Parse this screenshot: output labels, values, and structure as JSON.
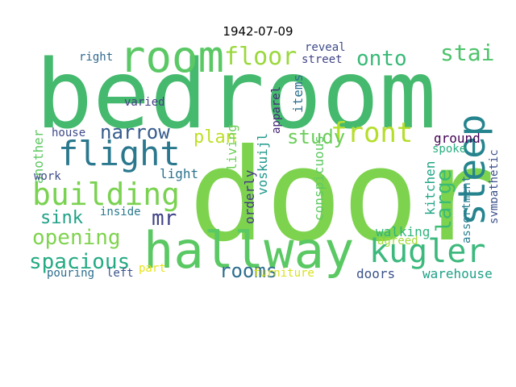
{
  "figure": {
    "title": "1942-07-09"
  },
  "words": [
    {
      "text": "bedroom",
      "color": "#45b96e"
    },
    {
      "text": "door",
      "color": "#7ed34e"
    },
    {
      "text": "hallway",
      "color": "#5ac863"
    },
    {
      "text": "room",
      "color": "#5ac864"
    },
    {
      "text": "building",
      "color": "#7ad251"
    },
    {
      "text": "flight",
      "color": "#2a788e"
    },
    {
      "text": "steep",
      "color": "#25848e"
    },
    {
      "text": "kugler",
      "color": "#3db97d"
    },
    {
      "text": "floor",
      "color": "#9ad83c"
    },
    {
      "text": "front",
      "color": "#b5de2b"
    },
    {
      "text": "stairs",
      "color": "#4ec36b"
    },
    {
      "text": "onto",
      "color": "#38b977"
    },
    {
      "text": "opening",
      "color": "#7fd34e"
    },
    {
      "text": "spacious",
      "color": "#24aa83"
    },
    {
      "text": "rooms",
      "color": "#2e6e8e"
    },
    {
      "text": "narrow",
      "color": "#365c8d"
    },
    {
      "text": "sink",
      "color": "#1fa187"
    },
    {
      "text": "study",
      "color": "#6ccd5a"
    },
    {
      "text": "plan",
      "color": "#bddf26"
    },
    {
      "text": "large",
      "color": "#3bbb75"
    },
    {
      "text": "mr",
      "color": "#414487"
    },
    {
      "text": "street",
      "color": "#414487"
    },
    {
      "text": "reveal",
      "color": "#3e4c8a"
    },
    {
      "text": "living",
      "color": "#6ece58"
    },
    {
      "text": "items",
      "color": "#2d708e"
    },
    {
      "text": "apparel",
      "color": "#482878"
    },
    {
      "text": "voskuijl",
      "color": "#1f988b"
    },
    {
      "text": "orderly",
      "color": "#443983"
    },
    {
      "text": "conspicuous",
      "color": "#5ec962"
    },
    {
      "text": "varied",
      "color": "#433e85"
    },
    {
      "text": "right",
      "color": "#31688e"
    },
    {
      "text": "house",
      "color": "#3e4a89"
    },
    {
      "text": "another",
      "color": "#5ec962"
    },
    {
      "text": "work",
      "color": "#3e4a89"
    },
    {
      "text": "light",
      "color": "#2c728e"
    },
    {
      "text": "inside",
      "color": "#2a788e"
    },
    {
      "text": "walking",
      "color": "#2fb47c"
    },
    {
      "text": "agreed",
      "color": "#a5db36"
    },
    {
      "text": "ground",
      "color": "#440154"
    },
    {
      "text": "spoke",
      "color": "#29af7f"
    },
    {
      "text": "kitchen",
      "color": "#20a486"
    },
    {
      "text": "assortment",
      "color": "#287d8e"
    },
    {
      "text": "sympathetic",
      "color": "#3b518b"
    },
    {
      "text": "warehouse",
      "color": "#1fa187"
    },
    {
      "text": "doors",
      "color": "#3b528b"
    },
    {
      "text": "furniture",
      "color": "#d8e219"
    },
    {
      "text": "part",
      "color": "#e5e419"
    },
    {
      "text": "left",
      "color": "#3b528b"
    },
    {
      "text": "pouring",
      "color": "#2e6e8e"
    }
  ]
}
